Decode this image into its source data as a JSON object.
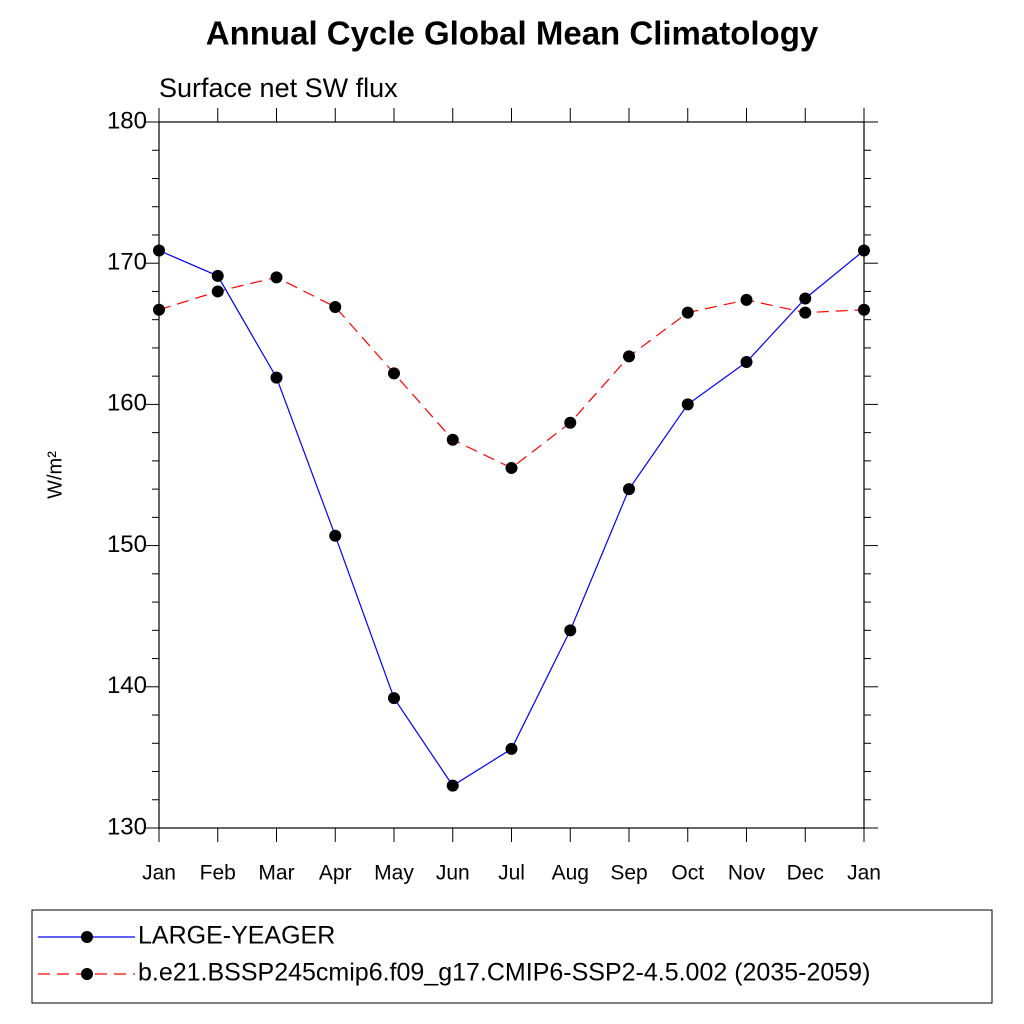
{
  "chart_data": {
    "type": "line",
    "title": "Annual Cycle Global Mean Climatology",
    "subtitle": "Surface net SW flux",
    "y_label": "W/m²",
    "categories": [
      "Jan",
      "Feb",
      "Mar",
      "Apr",
      "May",
      "Jun",
      "Jul",
      "Aug",
      "Sep",
      "Oct",
      "Nov",
      "Dec",
      "Jan"
    ],
    "series": [
      {
        "name": "LARGE-YEAGER",
        "color": "#0000ff",
        "linestyle": "solid",
        "marker_color": "#000000",
        "values": [
          170.9,
          169.1,
          161.9,
          150.7,
          139.2,
          133.0,
          135.6,
          144.0,
          154.0,
          160.0,
          163.0,
          167.5,
          170.9
        ]
      },
      {
        "name": "b.e21.BSSP245cmip6.f09_g17.CMIP6-SSP2-4.5.002 (2035-2059)",
        "color": "#ff0000",
        "linestyle": "dashed",
        "marker_color": "#000000",
        "values": [
          166.7,
          168.0,
          169.0,
          166.9,
          162.2,
          157.5,
          155.5,
          158.7,
          163.4,
          166.5,
          167.4,
          166.5,
          166.7
        ]
      }
    ],
    "ylim": [
      130,
      180
    ],
    "yticks": [
      130,
      140,
      150,
      160,
      170,
      180
    ],
    "yminorticks": [
      132,
      134,
      136,
      138,
      142,
      144,
      146,
      148,
      152,
      154,
      156,
      158,
      162,
      164,
      166,
      168,
      172,
      174,
      176,
      178
    ],
    "grid": false,
    "legend": "bottom"
  }
}
